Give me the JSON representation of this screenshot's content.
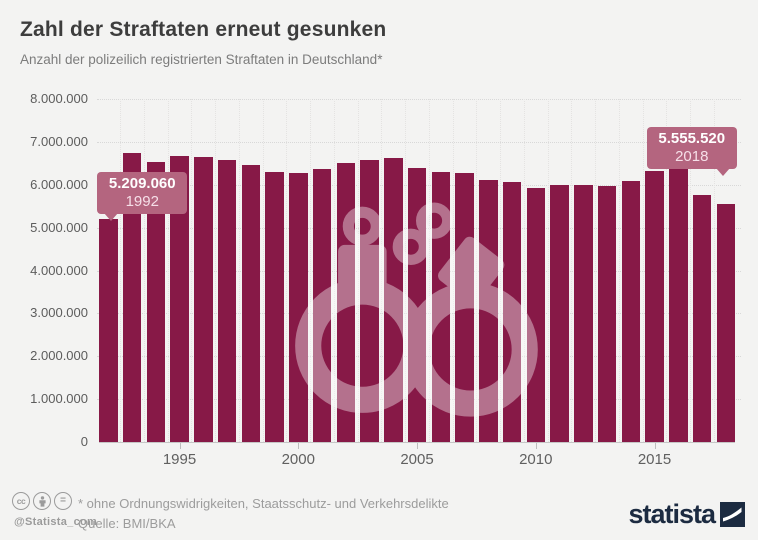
{
  "header": {
    "title": "Zahl der Straftaten erneut gesunken",
    "subtitle": "Anzahl der polizeilich registrierten Straftaten in Deutschland*"
  },
  "chart_data": {
    "type": "bar",
    "title": "Zahl der Straftaten erneut gesunken",
    "subtitle": "Anzahl der polizeilich registrierten Straftaten in Deutschland*",
    "categories": [
      1992,
      1993,
      1994,
      1995,
      1996,
      1997,
      1998,
      1999,
      2000,
      2001,
      2002,
      2003,
      2004,
      2005,
      2006,
      2007,
      2008,
      2009,
      2010,
      2011,
      2012,
      2013,
      2014,
      2015,
      2016,
      2017,
      2018
    ],
    "values": [
      5209060,
      6750613,
      6537748,
      6668717,
      6647598,
      6586165,
      6456996,
      6302316,
      6264723,
      6363865,
      6507394,
      6572135,
      6633156,
      6391715,
      6304223,
      6284661,
      6114128,
      6054330,
      5933278,
      5990679,
      5997040,
      5961662,
      6082064,
      6330649,
      6372526,
      5761984,
      5555520
    ],
    "ylim": [
      0,
      8000000
    ],
    "y_tick_labels_top_to_bottom": [
      "8.000.000",
      "7.000.000",
      "6.000.000",
      "5.000.000",
      "4.000.000",
      "3.000.000",
      "2.000.000",
      "1.000.000",
      "0"
    ],
    "x_tick_years": [
      1995,
      2000,
      2005,
      2010,
      2015
    ],
    "grid": "horizontal-dotted and faint vertical dotted per year, legend none",
    "bar_color": "#871947",
    "annotation_color": "#b4657f",
    "watermark": "handcuffs-icon",
    "annotations": [
      {
        "year": 1992,
        "value_label": "5.209.060",
        "year_label": "1992",
        "side": "left"
      },
      {
        "year": 2018,
        "value_label": "5.555.520",
        "year_label": "2018",
        "side": "right"
      }
    ]
  },
  "footer": {
    "license_icons": [
      "cc-icon",
      "attribution-icon",
      "no-derivatives-icon"
    ],
    "cc_glyph": "cc",
    "nd_glyph": "=",
    "handle": "@Statista_com",
    "note": "* ohne Ordnungswidrigkeiten, Staatsschutz- und Verkehrsdelikte",
    "source": "Quelle: BMI/BKA",
    "brand": "statista"
  },
  "colors": {
    "background": "#f3f3f2",
    "bar": "#871947",
    "badge": "#b4657f",
    "title_text": "#3d3d3d",
    "subtitle_text": "#7c7c7c",
    "axis_text": "#5c5c5c",
    "footer_text": "#9c9c9c",
    "brand_navy": "#1c2b41"
  }
}
